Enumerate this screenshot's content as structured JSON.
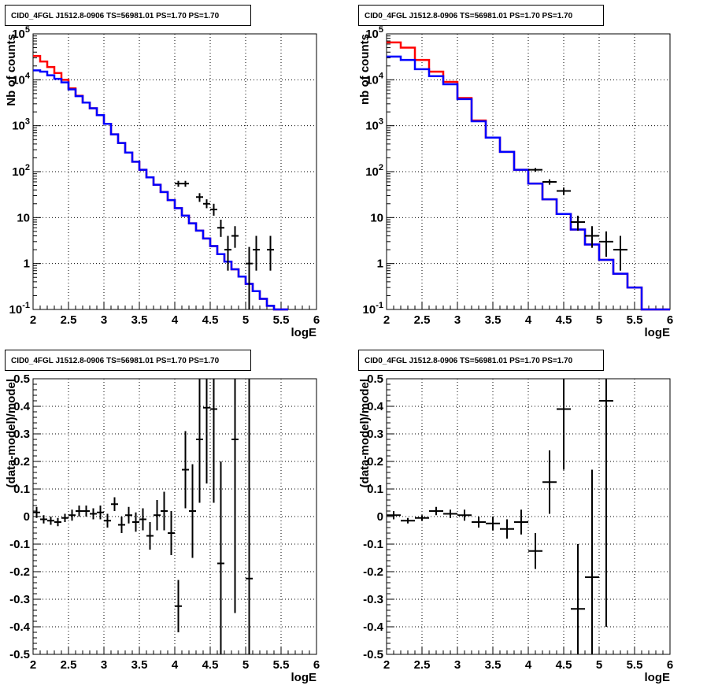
{
  "chart_data": [
    {
      "type": "line",
      "title": "CID0_4FGL J1512.8-0906 TS=56981.01 PS=1.70 PS=1.70",
      "xlabel": "logE",
      "ylabel": "Nb of counts",
      "xlim": [
        2,
        6
      ],
      "ylim": [
        0.1,
        100000
      ],
      "yscale": "log",
      "grid": true,
      "x_ticks": [
        "2",
        "2.5",
        "3",
        "3.5",
        "4",
        "4.5",
        "5",
        "5.5",
        "6"
      ],
      "y_ticks": [
        "10^-1",
        "1",
        "10",
        "10^2",
        "10^3",
        "10^4",
        "10^5"
      ],
      "bin_edges": [
        2.0,
        2.1,
        2.2,
        2.3,
        2.4,
        2.5,
        2.6,
        2.7,
        2.8,
        2.9,
        3.0,
        3.1,
        3.2,
        3.3,
        3.4,
        3.5,
        3.6,
        3.7,
        3.8,
        3.9,
        4.0,
        4.1,
        4.2,
        4.3,
        4.4,
        4.5,
        4.6,
        4.7,
        4.8,
        4.9,
        5.0,
        5.1,
        5.2,
        5.3,
        5.4,
        5.5,
        5.6,
        5.7,
        5.8,
        5.9,
        6.0
      ],
      "series": [
        {
          "color": "#ff0000",
          "style": "step",
          "values": [
            33000,
            25000,
            19000,
            14000,
            10000,
            6500,
            4500,
            3200,
            2400,
            1700,
            1100,
            650,
            420,
            260,
            165,
            110,
            75,
            52,
            36,
            24,
            16,
            11,
            7.5,
            5.2,
            3.5,
            2.4,
            1.6,
            1.1,
            0.75,
            0.52,
            0.36,
            0.25,
            0.17,
            0.12,
            0.1,
            0.1
          ]
        },
        {
          "color": "#0000ff",
          "style": "step",
          "values": [
            16000,
            15000,
            12500,
            10500,
            8800,
            6200,
            4400,
            3200,
            2400,
            1700,
            1100,
            650,
            420,
            260,
            165,
            110,
            75,
            52,
            36,
            24,
            16,
            11,
            7.5,
            5.2,
            3.5,
            2.4,
            1.6,
            1.1,
            0.75,
            0.52,
            0.36,
            0.25,
            0.17,
            0.12,
            0.1,
            0.1
          ]
        },
        {
          "color": "#000000",
          "style": "points",
          "points": [
            {
              "x": 4.05,
              "y": 55,
              "xerr": 0.05,
              "ylo": 47,
              "yhi": 63
            },
            {
              "x": 4.15,
              "y": 55,
              "xerr": 0.05,
              "ylo": 47,
              "yhi": 63
            },
            {
              "x": 4.35,
              "y": 28,
              "xerr": 0.05,
              "ylo": 22,
              "yhi": 34
            },
            {
              "x": 4.45,
              "y": 20,
              "xerr": 0.05,
              "ylo": 16,
              "yhi": 25
            },
            {
              "x": 4.55,
              "y": 15,
              "xerr": 0.05,
              "ylo": 11,
              "yhi": 20
            },
            {
              "x": 4.65,
              "y": 6,
              "xerr": 0.05,
              "ylo": 3.8,
              "yhi": 9
            },
            {
              "x": 4.75,
              "y": 2,
              "xerr": 0.05,
              "ylo": 0.7,
              "yhi": 4
            },
            {
              "x": 4.85,
              "y": 4,
              "xerr": 0.05,
              "ylo": 2.2,
              "yhi": 6.5
            },
            {
              "x": 5.05,
              "y": 1,
              "xerr": 0.05,
              "ylo": 0.1,
              "yhi": 2.3
            },
            {
              "x": 5.15,
              "y": 2,
              "xerr": 0.05,
              "ylo": 0.7,
              "yhi": 4
            },
            {
              "x": 5.35,
              "y": 2,
              "xerr": 0.05,
              "ylo": 0.7,
              "yhi": 4
            }
          ]
        }
      ]
    },
    {
      "type": "line",
      "title": "CID0_4FGL J1512.8-0906 TS=56981.01 PS=1.70 PS=1.70",
      "xlabel": "logE",
      "ylabel": "nb of counts",
      "xlim": [
        2,
        6
      ],
      "ylim": [
        0.1,
        100000
      ],
      "yscale": "log",
      "grid": true,
      "x_ticks": [
        "2",
        "2.5",
        "3",
        "3.5",
        "4",
        "4.5",
        "5",
        "5.5",
        "6"
      ],
      "y_ticks": [
        "10^-1",
        "1",
        "10",
        "10^2",
        "10^3",
        "10^4",
        "10^5"
      ],
      "bin_edges": [
        2.0,
        2.2,
        2.4,
        2.6,
        2.8,
        3.0,
        3.2,
        3.4,
        3.6,
        3.8,
        4.0,
        4.2,
        4.4,
        4.6,
        4.8,
        5.0,
        5.2,
        5.4,
        5.6,
        5.8,
        6.0
      ],
      "series": [
        {
          "color": "#ff0000",
          "style": "step",
          "values": [
            65000,
            50000,
            27000,
            15000,
            9000,
            4000,
            1300,
            550,
            270,
            110,
            55,
            25,
            12,
            5.5,
            2.6,
            1.2,
            0.6,
            0.3,
            0.1,
            0.1
          ]
        },
        {
          "color": "#0000ff",
          "style": "step",
          "values": [
            32000,
            27000,
            17000,
            12000,
            8000,
            3800,
            1250,
            550,
            270,
            110,
            55,
            25,
            12,
            5.5,
            2.6,
            1.2,
            0.6,
            0.3,
            0.1,
            0.1
          ]
        },
        {
          "color": "#000000",
          "style": "points",
          "points": [
            {
              "x": 4.1,
              "y": 110,
              "xerr": 0.1,
              "ylo": 100,
              "yhi": 120
            },
            {
              "x": 4.3,
              "y": 60,
              "xerr": 0.1,
              "ylo": 52,
              "yhi": 68
            },
            {
              "x": 4.5,
              "y": 38,
              "xerr": 0.1,
              "ylo": 31,
              "yhi": 45
            },
            {
              "x": 4.7,
              "y": 8,
              "xerr": 0.1,
              "ylo": 5.2,
              "yhi": 11
            },
            {
              "x": 4.9,
              "y": 4,
              "xerr": 0.1,
              "ylo": 2.2,
              "yhi": 6.5
            },
            {
              "x": 5.1,
              "y": 3,
              "xerr": 0.1,
              "ylo": 1.4,
              "yhi": 5
            },
            {
              "x": 5.3,
              "y": 2,
              "xerr": 0.1,
              "ylo": 0.7,
              "yhi": 4
            }
          ]
        }
      ]
    },
    {
      "type": "scatter",
      "title": "CID0_4FGL J1512.8-0906 TS=56981.01 PS=1.70 PS=1.70",
      "xlabel": "logE",
      "ylabel": "(data-model)/model",
      "xlim": [
        2,
        6
      ],
      "ylim": [
        -0.5,
        0.5
      ],
      "grid": true,
      "x_ticks": [
        "2",
        "2.5",
        "3",
        "3.5",
        "4",
        "4.5",
        "5",
        "5.5",
        "6"
      ],
      "y_ticks": [
        "-0.5",
        "-0.4",
        "-0.3",
        "-0.2",
        "-0.1",
        "0",
        "0.1",
        "0.2",
        "0.3",
        "0.4",
        "0.5"
      ],
      "series": [
        {
          "color": "#000000",
          "style": "points",
          "points": [
            {
              "x": 2.05,
              "y": 0.015,
              "xerr": 0.05,
              "ylo": -0.005,
              "yhi": 0.035
            },
            {
              "x": 2.15,
              "y": -0.01,
              "xerr": 0.05,
              "ylo": -0.025,
              "yhi": 0.005
            },
            {
              "x": 2.25,
              "y": -0.015,
              "xerr": 0.05,
              "ylo": -0.03,
              "yhi": 0.0
            },
            {
              "x": 2.35,
              "y": -0.02,
              "xerr": 0.05,
              "ylo": -0.035,
              "yhi": -0.005
            },
            {
              "x": 2.45,
              "y": -0.005,
              "xerr": 0.05,
              "ylo": -0.02,
              "yhi": 0.01
            },
            {
              "x": 2.55,
              "y": 0.005,
              "xerr": 0.05,
              "ylo": -0.015,
              "yhi": 0.025
            },
            {
              "x": 2.65,
              "y": 0.02,
              "xerr": 0.05,
              "ylo": 0.0,
              "yhi": 0.04
            },
            {
              "x": 2.75,
              "y": 0.02,
              "xerr": 0.05,
              "ylo": 0.0,
              "yhi": 0.04
            },
            {
              "x": 2.85,
              "y": 0.01,
              "xerr": 0.05,
              "ylo": -0.01,
              "yhi": 0.03
            },
            {
              "x": 2.95,
              "y": 0.015,
              "xerr": 0.05,
              "ylo": -0.01,
              "yhi": 0.04
            },
            {
              "x": 3.05,
              "y": -0.015,
              "xerr": 0.05,
              "ylo": -0.04,
              "yhi": 0.01
            },
            {
              "x": 3.15,
              "y": 0.045,
              "xerr": 0.05,
              "ylo": 0.02,
              "yhi": 0.07
            },
            {
              "x": 3.25,
              "y": -0.03,
              "xerr": 0.05,
              "ylo": -0.06,
              "yhi": 0.0
            },
            {
              "x": 3.35,
              "y": 0.005,
              "xerr": 0.05,
              "ylo": -0.025,
              "yhi": 0.035
            },
            {
              "x": 3.45,
              "y": -0.02,
              "xerr": 0.05,
              "ylo": -0.055,
              "yhi": 0.015
            },
            {
              "x": 3.55,
              "y": -0.01,
              "xerr": 0.05,
              "ylo": -0.05,
              "yhi": 0.03
            },
            {
              "x": 3.65,
              "y": -0.07,
              "xerr": 0.05,
              "ylo": -0.12,
              "yhi": -0.02
            },
            {
              "x": 3.75,
              "y": 0.005,
              "xerr": 0.05,
              "ylo": -0.05,
              "yhi": 0.06
            },
            {
              "x": 3.85,
              "y": 0.02,
              "xerr": 0.05,
              "ylo": -0.05,
              "yhi": 0.09
            },
            {
              "x": 3.95,
              "y": -0.06,
              "xerr": 0.05,
              "ylo": -0.14,
              "yhi": 0.02
            },
            {
              "x": 4.05,
              "y": -0.325,
              "xerr": 0.05,
              "ylo": -0.42,
              "yhi": -0.23
            },
            {
              "x": 4.15,
              "y": 0.17,
              "xerr": 0.05,
              "ylo": 0.03,
              "yhi": 0.31
            },
            {
              "x": 4.25,
              "y": 0.02,
              "xerr": 0.05,
              "ylo": -0.15,
              "yhi": 0.19
            },
            {
              "x": 4.35,
              "y": 0.28,
              "xerr": 0.05,
              "ylo": 0.05,
              "yhi": 0.5
            },
            {
              "x": 4.45,
              "y": 0.395,
              "xerr": 0.05,
              "ylo": 0.12,
              "yhi": 0.5
            },
            {
              "x": 4.55,
              "y": 0.39,
              "xerr": 0.05,
              "ylo": 0.05,
              "yhi": 0.5
            },
            {
              "x": 4.65,
              "y": -0.17,
              "xerr": 0.05,
              "ylo": -0.5,
              "yhi": 0.2
            },
            {
              "x": 4.85,
              "y": 0.28,
              "xerr": 0.05,
              "ylo": -0.35,
              "yhi": 0.5
            },
            {
              "x": 5.05,
              "y": -0.225,
              "xerr": 0.05,
              "ylo": -0.5,
              "yhi": 0.5
            }
          ]
        }
      ]
    },
    {
      "type": "scatter",
      "title": "CID0_4FGL J1512.8-0906 TS=56981.01 PS=1.70 PS=1.70",
      "xlabel": "logE",
      "ylabel": "(data-model)/model",
      "xlim": [
        2,
        6
      ],
      "ylim": [
        -0.5,
        0.5
      ],
      "grid": true,
      "x_ticks": [
        "2",
        "2.5",
        "3",
        "3.5",
        "4",
        "4.5",
        "5",
        "5.5",
        "6"
      ],
      "y_ticks": [
        "-0.5",
        "-0.4",
        "-0.3",
        "-0.2",
        "-0.1",
        "0",
        "0.1",
        "0.2",
        "0.3",
        "0.4",
        "0.5"
      ],
      "series": [
        {
          "color": "#000000",
          "style": "points",
          "points": [
            {
              "x": 2.1,
              "y": 0.005,
              "xerr": 0.1,
              "ylo": -0.01,
              "yhi": 0.02
            },
            {
              "x": 2.3,
              "y": -0.015,
              "xerr": 0.1,
              "ylo": -0.025,
              "yhi": -0.005
            },
            {
              "x": 2.5,
              "y": -0.005,
              "xerr": 0.1,
              "ylo": -0.015,
              "yhi": 0.005
            },
            {
              "x": 2.7,
              "y": 0.02,
              "xerr": 0.1,
              "ylo": 0.005,
              "yhi": 0.035
            },
            {
              "x": 2.9,
              "y": 0.01,
              "xerr": 0.1,
              "ylo": -0.005,
              "yhi": 0.025
            },
            {
              "x": 3.1,
              "y": 0.005,
              "xerr": 0.1,
              "ylo": -0.015,
              "yhi": 0.025
            },
            {
              "x": 3.3,
              "y": -0.02,
              "xerr": 0.1,
              "ylo": -0.04,
              "yhi": 0.0
            },
            {
              "x": 3.5,
              "y": -0.025,
              "xerr": 0.1,
              "ylo": -0.05,
              "yhi": 0.0
            },
            {
              "x": 3.7,
              "y": -0.045,
              "xerr": 0.1,
              "ylo": -0.08,
              "yhi": -0.01
            },
            {
              "x": 3.9,
              "y": -0.02,
              "xerr": 0.1,
              "ylo": -0.065,
              "yhi": 0.025
            },
            {
              "x": 4.1,
              "y": -0.125,
              "xerr": 0.1,
              "ylo": -0.19,
              "yhi": -0.06
            },
            {
              "x": 4.3,
              "y": 0.125,
              "xerr": 0.1,
              "ylo": 0.01,
              "yhi": 0.24
            },
            {
              "x": 4.5,
              "y": 0.39,
              "xerr": 0.1,
              "ylo": 0.17,
              "yhi": 0.5
            },
            {
              "x": 4.7,
              "y": -0.335,
              "xerr": 0.1,
              "ylo": -0.5,
              "yhi": -0.1
            },
            {
              "x": 4.9,
              "y": -0.22,
              "xerr": 0.1,
              "ylo": -0.5,
              "yhi": 0.17
            },
            {
              "x": 5.1,
              "y": 0.42,
              "xerr": 0.1,
              "ylo": -0.4,
              "yhi": 0.5
            }
          ]
        }
      ]
    }
  ]
}
